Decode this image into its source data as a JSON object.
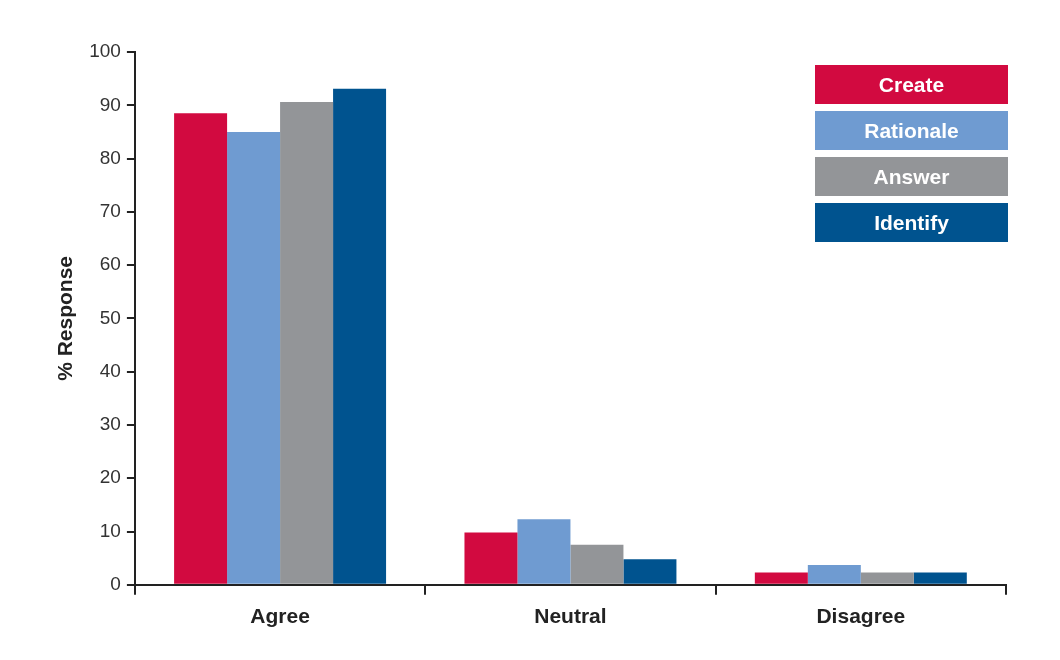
{
  "chart_data": {
    "type": "bar",
    "ylabel": "% Response",
    "categories": [
      "Agree",
      "Neutral",
      "Disagree"
    ],
    "series": [
      {
        "name": "Create",
        "color": "#d20a40",
        "values": [
          88.5,
          9.8,
          2.3
        ]
      },
      {
        "name": "Rationale",
        "color": "#6f9bd1",
        "values": [
          85,
          12.3,
          3.7
        ]
      },
      {
        "name": "Answer",
        "color": "#939598",
        "values": [
          90.6,
          7.5,
          2.3
        ]
      },
      {
        "name": "Identify",
        "color": "#00538f",
        "values": [
          93.1,
          4.8,
          2.3
        ]
      }
    ],
    "ylim": [
      0,
      100
    ],
    "yticks": [
      0,
      10,
      20,
      30,
      40,
      50,
      60,
      70,
      80,
      90,
      100
    ],
    "grid": false,
    "legend": "top right"
  }
}
